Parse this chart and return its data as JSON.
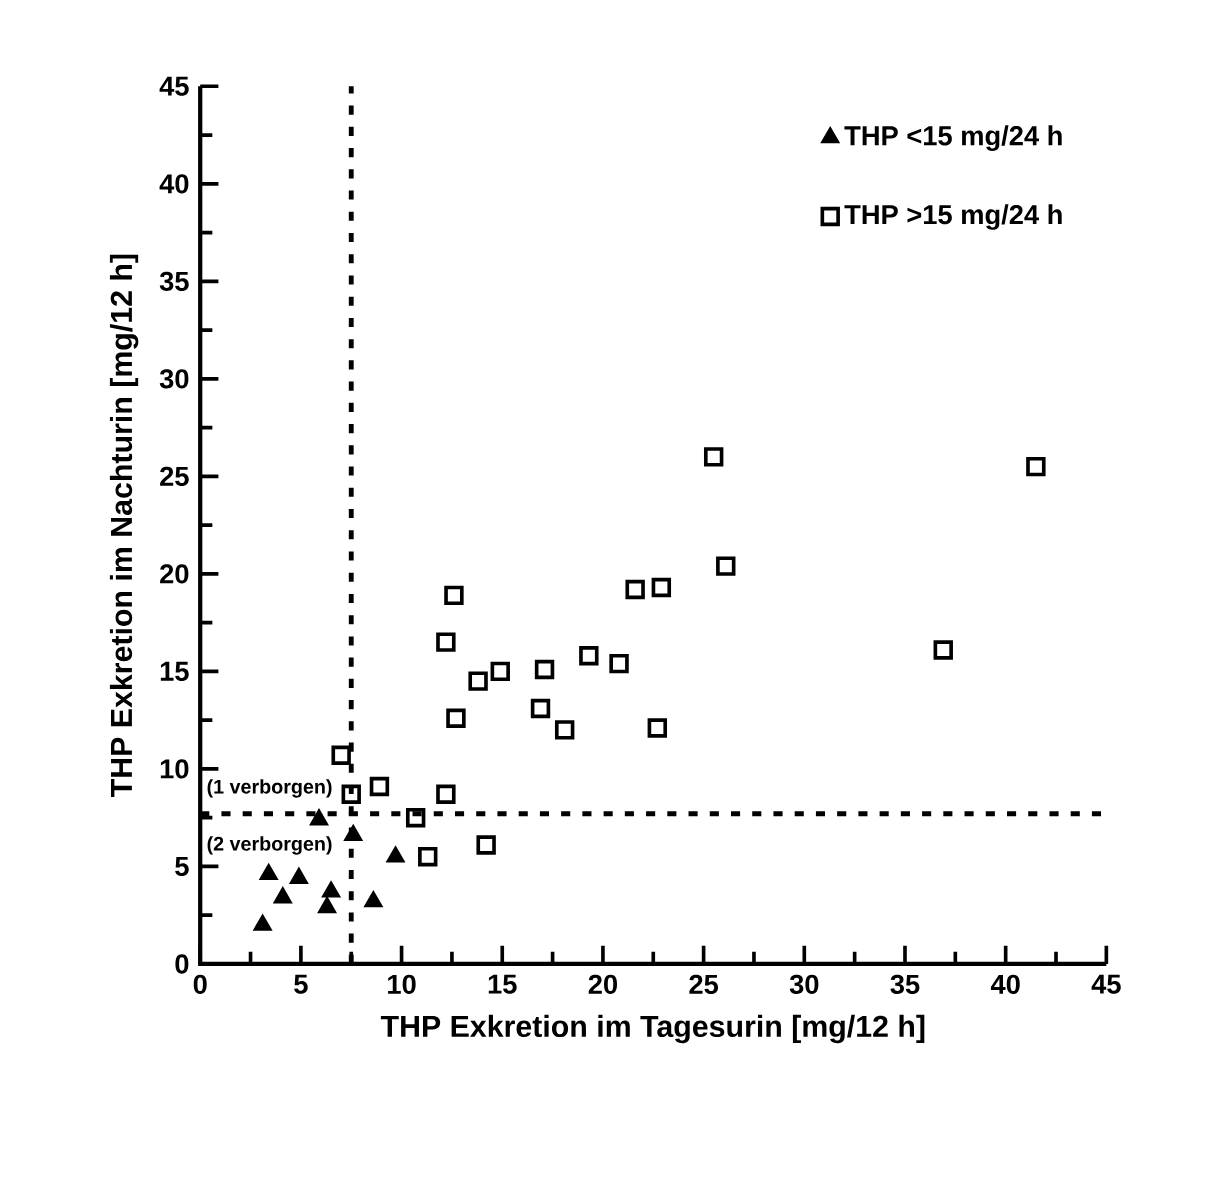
{
  "chart_data": {
    "type": "scatter",
    "xlabel": "THP Exkretion im Tagesurin [mg/12 h]",
    "ylabel": "THP Exkretion im Nachturin [mg/12 h]",
    "xlim": [
      0,
      45
    ],
    "ylim": [
      0,
      45
    ],
    "xticks": [
      0,
      5,
      10,
      15,
      20,
      25,
      30,
      35,
      40,
      45
    ],
    "yticks": [
      0,
      5,
      10,
      15,
      20,
      25,
      30,
      35,
      40,
      45
    ],
    "legend": "top right",
    "grid": false,
    "series": [
      {
        "name": "THP <15 mg/24 h",
        "color": "#000000",
        "marker": "triangle",
        "x": [
          3.1,
          3.4,
          4.1,
          4.9,
          6.3,
          6.5,
          7.6,
          8.6,
          9.7,
          5.9
        ],
        "values": [
          2.0,
          4.6,
          3.4,
          4.4,
          2.9,
          3.7,
          6.6,
          3.2,
          5.5,
          7.4
        ]
      },
      {
        "name": "THP >15 mg/24 h",
        "color": "#000000",
        "marker": "square",
        "x": [
          12.2,
          13.8,
          14.9,
          17.1,
          12.7,
          16.9,
          7.0,
          7.5,
          8.9,
          12.2,
          10.7,
          11.3,
          14.2,
          25.5,
          41.5,
          26.1,
          21.6,
          22.9,
          12.6,
          36.9,
          19.3,
          20.8,
          18.1,
          22.7
        ],
        "values": [
          16.5,
          14.5,
          15.0,
          15.1,
          12.6,
          13.1,
          10.7,
          8.7,
          9.1,
          8.7,
          7.5,
          5.5,
          6.1,
          26.0,
          25.5,
          20.4,
          19.2,
          19.3,
          18.9,
          16.1,
          15.8,
          15.4,
          12.0,
          12.1
        ]
      }
    ],
    "ref_lines": [
      {
        "axis": "x",
        "value": 7.5,
        "line_style": "dashed"
      },
      {
        "axis": "y",
        "value": 7.7,
        "line_style": "dashed"
      }
    ],
    "annotations": [
      "(1 verborgen)",
      "(2 verborgen)"
    ]
  }
}
